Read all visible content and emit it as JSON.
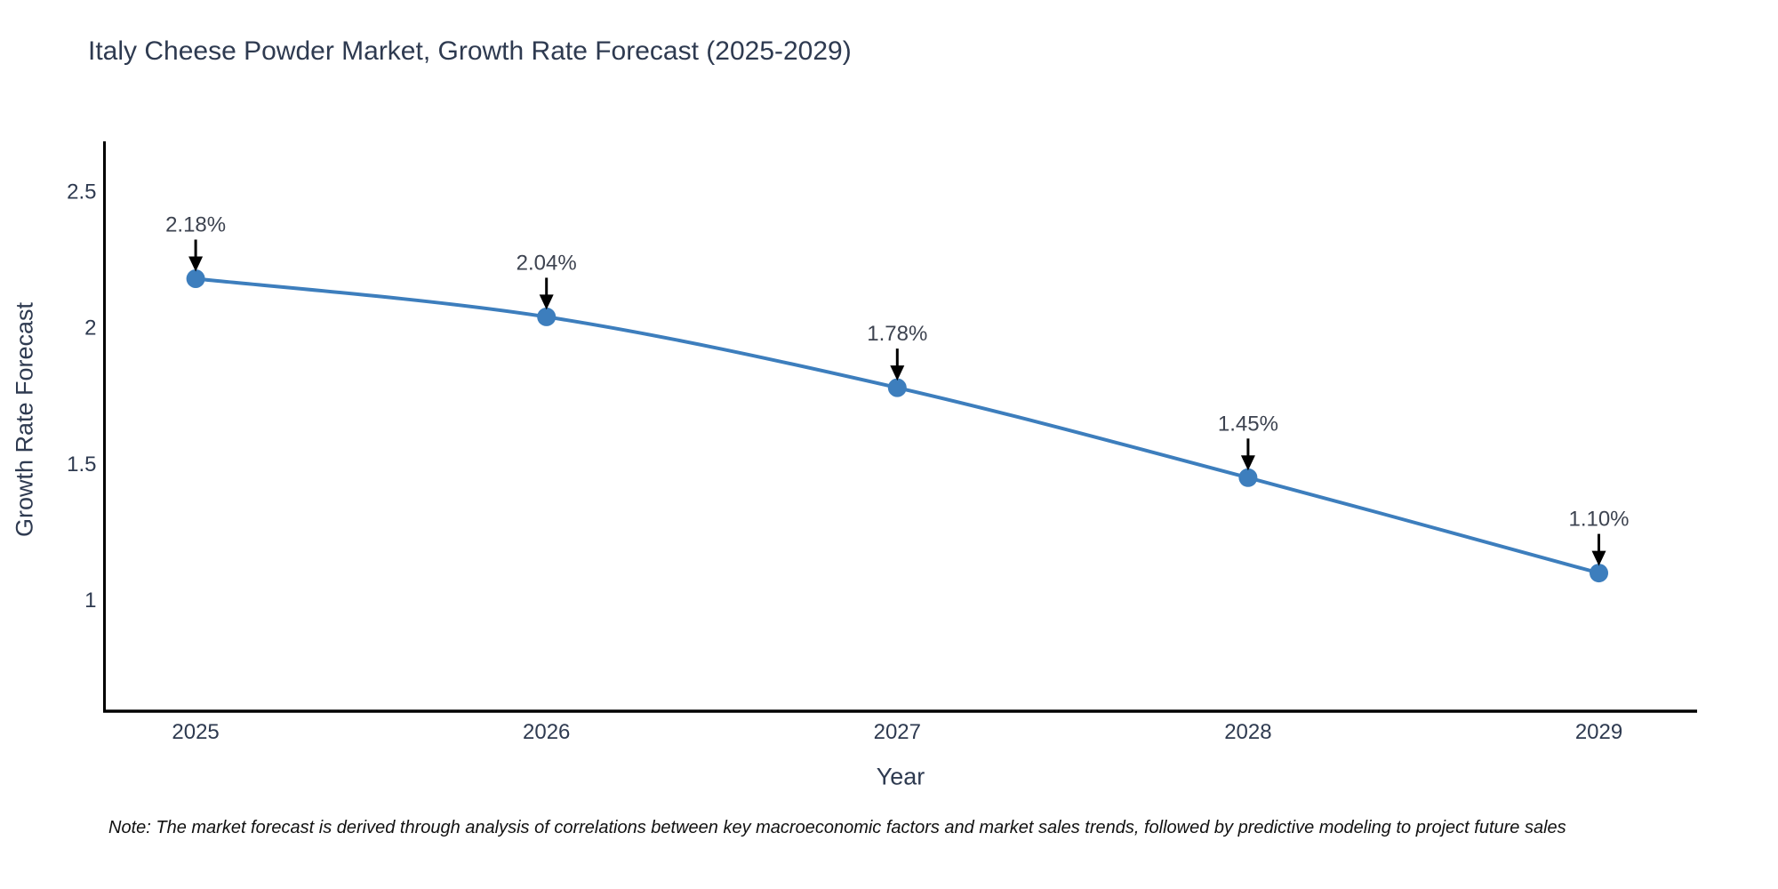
{
  "note": "Note: The market forecast is derived through analysis of correlations between key macroeconomic factors and market sales trends, followed by predictive modeling to project future sales",
  "chart_data": {
    "type": "line",
    "title": "Italy Cheese Powder Market, Growth Rate Forecast (2025-2029)",
    "xlabel": "Year",
    "ylabel": "Growth Rate Forecast",
    "x": [
      2025,
      2026,
      2027,
      2028,
      2029
    ],
    "xtick_labels": [
      "2025",
      "2026",
      "2027",
      "2028",
      "2029"
    ],
    "values": [
      2.18,
      2.04,
      1.78,
      1.45,
      1.1
    ],
    "point_labels": [
      "2.18%",
      "2.04%",
      "1.78%",
      "1.45%",
      "1.10%"
    ],
    "yticks": [
      1,
      1.5,
      2,
      2.5
    ],
    "ytick_labels": [
      "1",
      "1.5",
      "2",
      "2.5"
    ],
    "xlim": [
      2024.74,
      2029.28
    ],
    "ylim": [
      0.593,
      2.684
    ],
    "grid": false,
    "legend": "none",
    "line_shape": "spline",
    "line_color": "#3d7ebd",
    "marker_color": "#3d7ebd",
    "axis_color": "#000000",
    "tick_color": "#2e3a50",
    "annotation_color": "#3d4350",
    "arrow_color": "#000000"
  }
}
